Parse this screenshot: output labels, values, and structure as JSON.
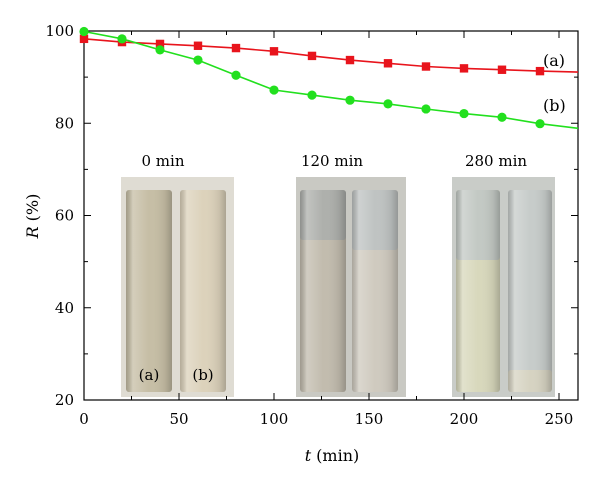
{
  "chart_data": {
    "type": "line",
    "xlabel_var": "t",
    "xlabel_unit": "(min)",
    "ylabel_var": "R",
    "ylabel_unit": "(%)",
    "xlim": [
      0,
      260
    ],
    "ylim": [
      20,
      100
    ],
    "xticks": [
      0,
      50,
      100,
      150,
      200,
      250
    ],
    "yticks": [
      20,
      40,
      60,
      80,
      100
    ],
    "grid": false,
    "series": [
      {
        "name": "(a)",
        "color": "#e8141c",
        "marker": "square",
        "points": [
          [
            0,
            98.3
          ],
          [
            20,
            97.6
          ],
          [
            40,
            97.2
          ],
          [
            60,
            96.8
          ],
          [
            80,
            96.3
          ],
          [
            100,
            95.6
          ],
          [
            120,
            94.6
          ],
          [
            140,
            93.7
          ],
          [
            160,
            93.0
          ],
          [
            180,
            92.3
          ],
          [
            200,
            91.9
          ],
          [
            220,
            91.6
          ],
          [
            240,
            91.3
          ]
        ],
        "line_end": [
          260,
          91.1
        ]
      },
      {
        "name": "(b)",
        "color": "#22e01e",
        "marker": "circle",
        "points": [
          [
            0,
            99.9
          ],
          [
            20,
            98.3
          ],
          [
            40,
            95.9
          ],
          [
            60,
            93.7
          ],
          [
            80,
            90.4
          ],
          [
            100,
            87.2
          ],
          [
            120,
            86.1
          ],
          [
            140,
            85.0
          ],
          [
            160,
            84.2
          ],
          [
            180,
            83.1
          ],
          [
            200,
            82.1
          ],
          [
            220,
            81.3
          ],
          [
            240,
            79.9
          ]
        ],
        "line_end": [
          260,
          78.9
        ]
      }
    ],
    "inset_photos": [
      {
        "label": "0 min",
        "tube_labels": [
          "(a)",
          "(b)"
        ]
      },
      {
        "label": "120 min",
        "tube_labels": []
      },
      {
        "label": "280 min",
        "tube_labels": []
      }
    ]
  }
}
